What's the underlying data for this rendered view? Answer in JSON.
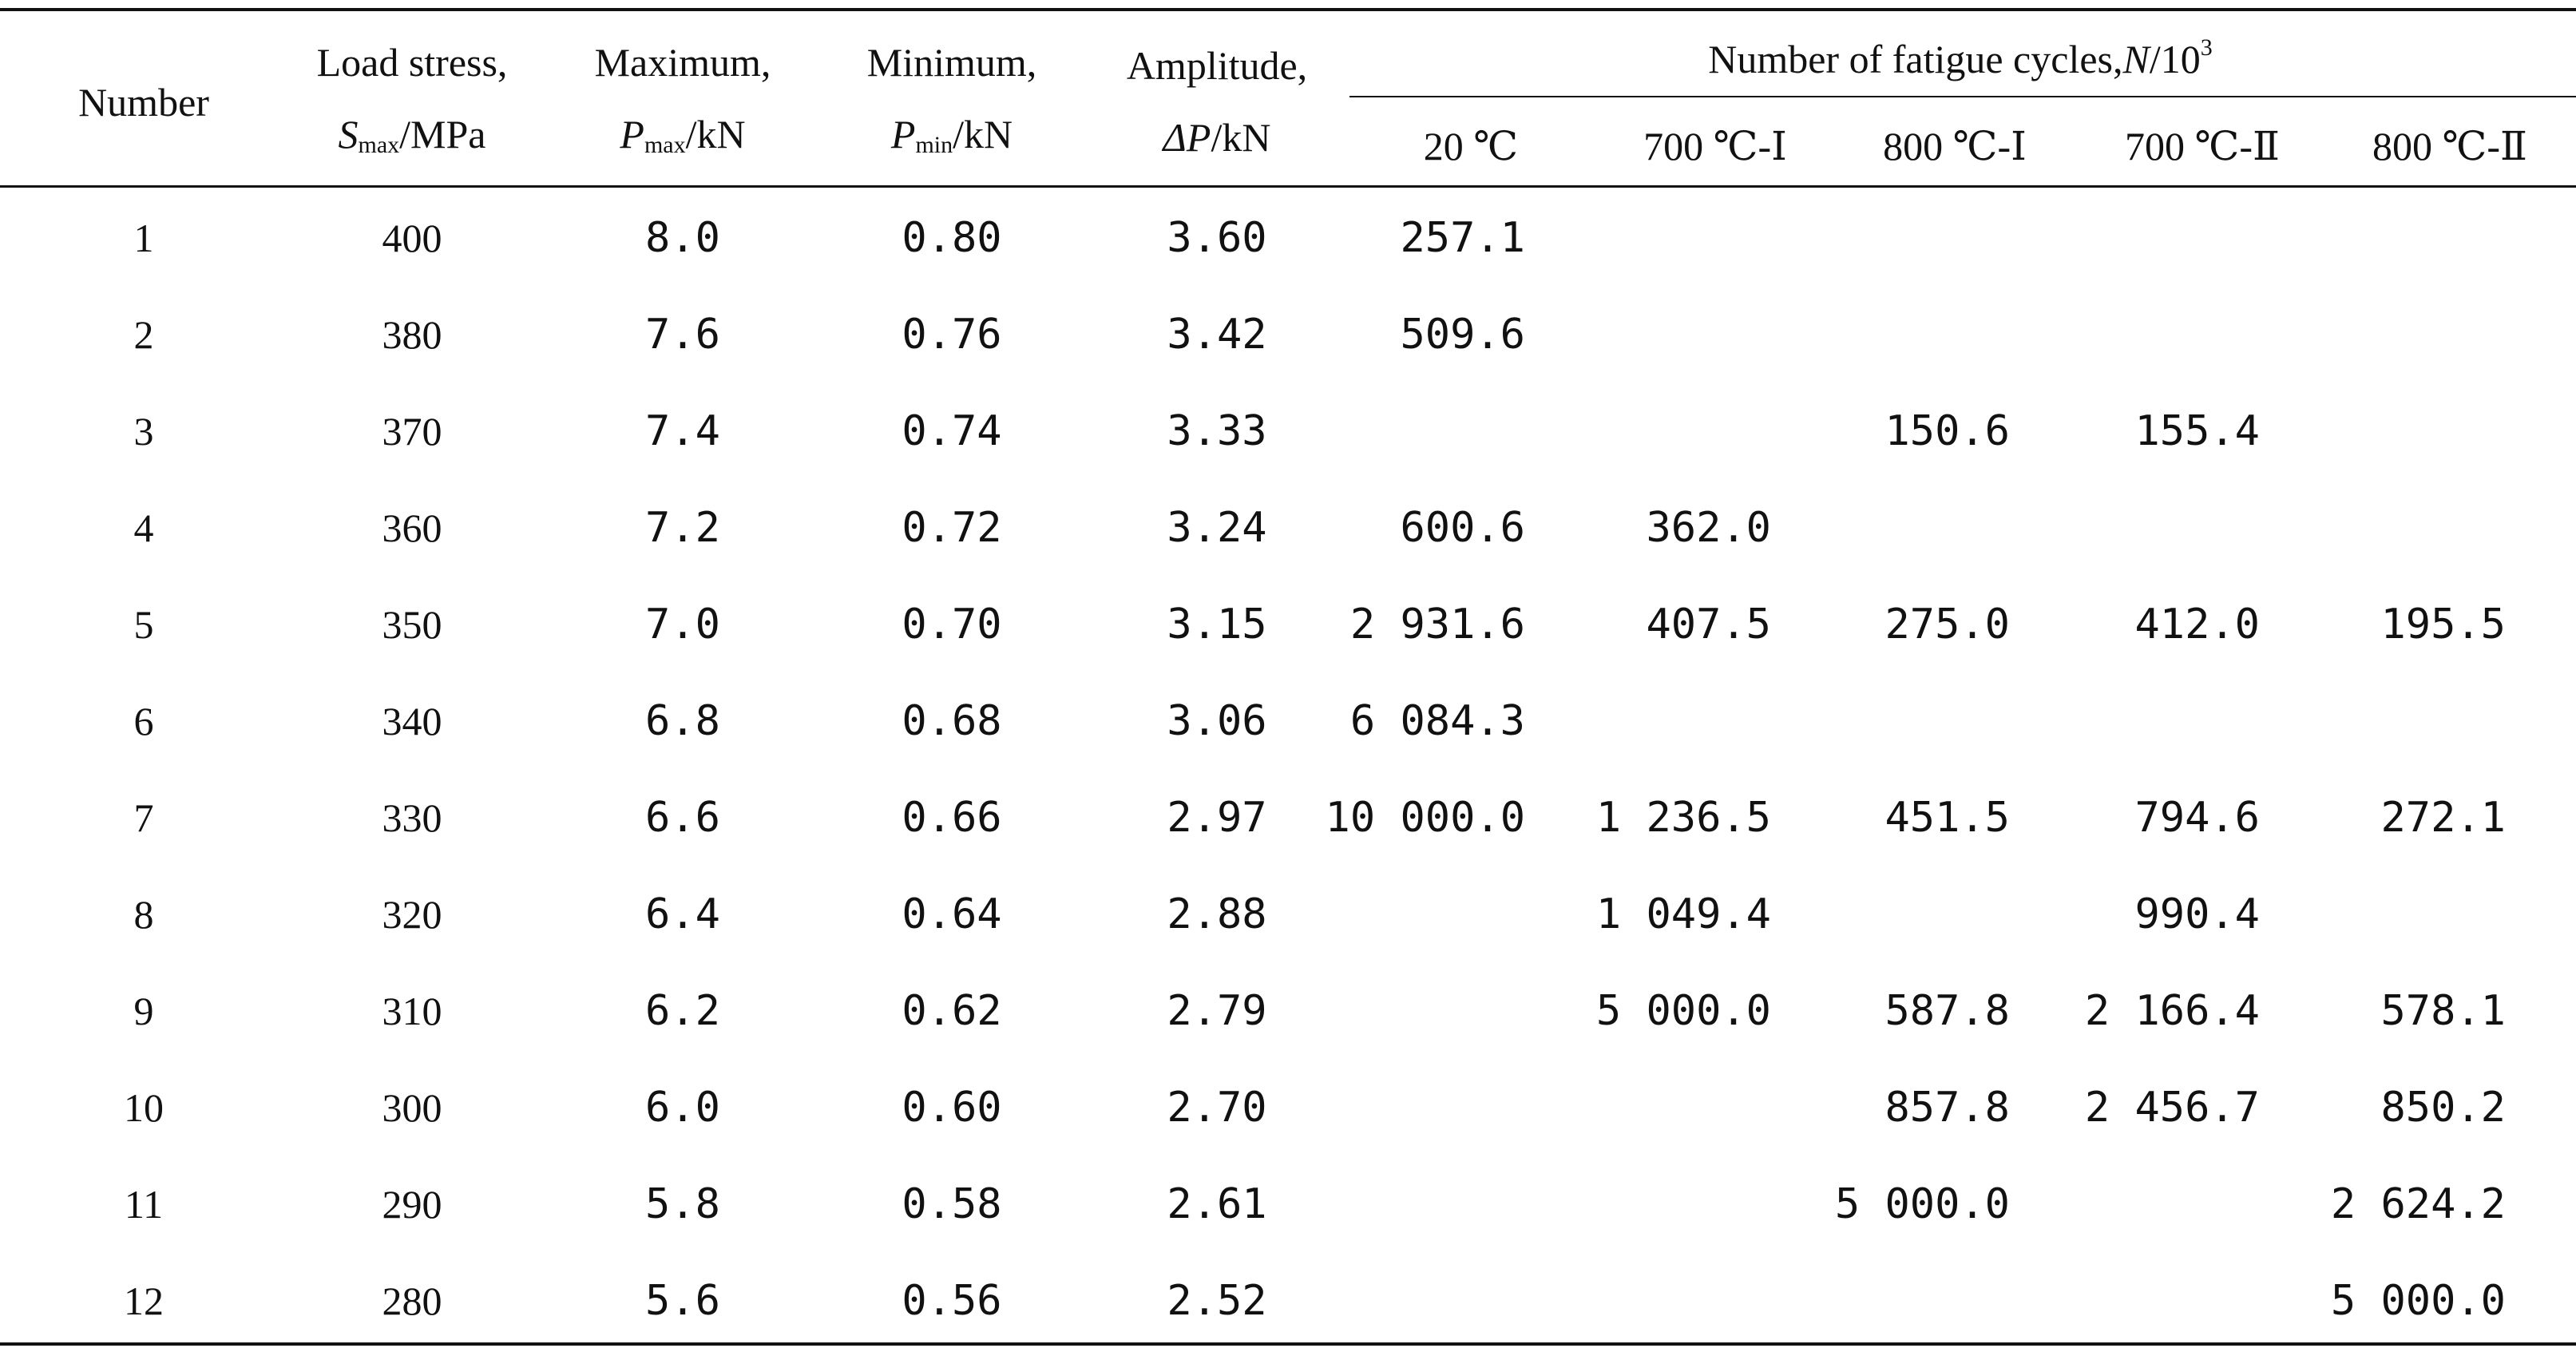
{
  "header": {
    "number": "Number",
    "load_top": "Load stress,",
    "load_sym": "S",
    "load_sub": "max",
    "load_unit": "/MPa",
    "max_top": "Maximum,",
    "max_sym": "P",
    "max_sub": "max",
    "max_unit": "/kN",
    "min_top": "Minimum,",
    "min_sym": "P",
    "min_sub": "min",
    "min_unit": "/kN",
    "amp_top": "Amplitude,",
    "amp_sym": "ΔP",
    "amp_unit": "/kN",
    "cycles_pre": "Number of fatigue cycles,",
    "cycles_sym": "N",
    "cycles_unit": "/10",
    "cycles_exp": "3",
    "sub_cols": [
      "20 ℃",
      "700 ℃-Ⅰ",
      "800 ℃-Ⅰ",
      "700 ℃-Ⅱ",
      "800 ℃-Ⅱ"
    ]
  },
  "rows": [
    {
      "no": "1",
      "s": "400",
      "pmax": "8.0",
      "pmin": "0.80",
      "dp": "3.60",
      "c": [
        "257.1",
        "",
        "",
        "",
        ""
      ]
    },
    {
      "no": "2",
      "s": "380",
      "pmax": "7.6",
      "pmin": "0.76",
      "dp": "3.42",
      "c": [
        "509.6",
        "",
        "",
        "",
        ""
      ]
    },
    {
      "no": "3",
      "s": "370",
      "pmax": "7.4",
      "pmin": "0.74",
      "dp": "3.33",
      "c": [
        "",
        "",
        "150.6",
        "155.4",
        ""
      ]
    },
    {
      "no": "4",
      "s": "360",
      "pmax": "7.2",
      "pmin": "0.72",
      "dp": "3.24",
      "c": [
        "600.6",
        "362.0",
        "",
        "",
        ""
      ]
    },
    {
      "no": "5",
      "s": "350",
      "pmax": "7.0",
      "pmin": "0.70",
      "dp": "3.15",
      "c": [
        "2 931.6",
        "407.5",
        "275.0",
        "412.0",
        "195.5"
      ]
    },
    {
      "no": "6",
      "s": "340",
      "pmax": "6.8",
      "pmin": "0.68",
      "dp": "3.06",
      "c": [
        "6 084.3",
        "",
        "",
        "",
        ""
      ]
    },
    {
      "no": "7",
      "s": "330",
      "pmax": "6.6",
      "pmin": "0.66",
      "dp": "2.97",
      "c": [
        "10 000.0",
        "1 236.5",
        "451.5",
        "794.6",
        "272.1"
      ]
    },
    {
      "no": "8",
      "s": "320",
      "pmax": "6.4",
      "pmin": "0.64",
      "dp": "2.88",
      "c": [
        "",
        "1 049.4",
        "",
        "990.4",
        ""
      ]
    },
    {
      "no": "9",
      "s": "310",
      "pmax": "6.2",
      "pmin": "0.62",
      "dp": "2.79",
      "c": [
        "",
        "5 000.0",
        "587.8",
        "2 166.4",
        "578.1"
      ]
    },
    {
      "no": "10",
      "s": "300",
      "pmax": "6.0",
      "pmin": "0.60",
      "dp": "2.70",
      "c": [
        "",
        "",
        "857.8",
        "2 456.7",
        "850.2"
      ]
    },
    {
      "no": "11",
      "s": "290",
      "pmax": "5.8",
      "pmin": "0.58",
      "dp": "2.61",
      "c": [
        "",
        "",
        "5 000.0",
        "",
        "2 624.2"
      ]
    },
    {
      "no": "12",
      "s": "280",
      "pmax": "5.6",
      "pmin": "0.56",
      "dp": "2.52",
      "c": [
        "",
        "",
        "",
        "",
        "5 000.0"
      ]
    }
  ]
}
